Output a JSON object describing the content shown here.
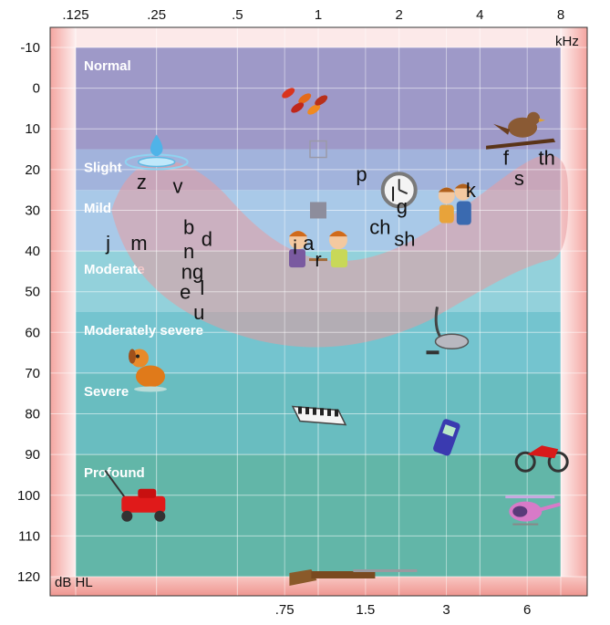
{
  "chart_data": {
    "type": "audiogram",
    "x_unit": "kHz",
    "y_unit": "dB HL",
    "x_ticks_top": [
      ".125",
      ".25",
      ".5",
      "1",
      "2",
      "4",
      "8"
    ],
    "x_ticks_bottom": [
      ".75",
      "1.5",
      "3",
      "6"
    ],
    "y_ticks": [
      "-10",
      "0",
      "10",
      "20",
      "30",
      "40",
      "50",
      "60",
      "70",
      "80",
      "90",
      "100",
      "110",
      "120"
    ],
    "ylim": [
      -10,
      120
    ],
    "bands": [
      {
        "label": "Normal",
        "from": -10,
        "to": 15,
        "color": "#9e99c8"
      },
      {
        "label": "Slight",
        "from": 15,
        "to": 25,
        "color": "#a2b3dc"
      },
      {
        "label": "Mild",
        "from": 25,
        "to": 40,
        "color": "#a9c9e8"
      },
      {
        "label": "Moderate",
        "from": 40,
        "to": 55,
        "color": "#93d1db"
      },
      {
        "label": "Moderately severe",
        "from": 55,
        "to": 70,
        "color": "#74c4cf"
      },
      {
        "label": "Severe",
        "from": 70,
        "to": 90,
        "color": "#69bdc0"
      },
      {
        "label": "Profound",
        "from": 90,
        "to": 120,
        "color": "#62b6a8"
      }
    ],
    "speech_sounds": [
      {
        "text": "z",
        "freq": 0.22,
        "db": 23
      },
      {
        "text": "v",
        "freq": 0.3,
        "db": 24
      },
      {
        "text": "p",
        "freq": 1.45,
        "db": 21
      },
      {
        "text": "f",
        "freq": 5.0,
        "db": 17
      },
      {
        "text": "th",
        "freq": 7.1,
        "db": 17
      },
      {
        "text": "s",
        "freq": 5.6,
        "db": 22
      },
      {
        "text": "l",
        "freq": 1.9,
        "db": 26
      },
      {
        "text": "g",
        "freq": 2.05,
        "db": 29
      },
      {
        "text": "k",
        "freq": 3.7,
        "db": 25
      },
      {
        "text": "ch",
        "freq": 1.7,
        "db": 34
      },
      {
        "text": "sh",
        "freq": 2.1,
        "db": 37
      },
      {
        "text": "j",
        "freq": 0.165,
        "db": 38
      },
      {
        "text": "m",
        "freq": 0.215,
        "db": 38
      },
      {
        "text": "b",
        "freq": 0.33,
        "db": 34
      },
      {
        "text": "d",
        "freq": 0.385,
        "db": 37
      },
      {
        "text": "n",
        "freq": 0.33,
        "db": 40
      },
      {
        "text": "i",
        "freq": 0.82,
        "db": 39
      },
      {
        "text": "a",
        "freq": 0.92,
        "db": 38
      },
      {
        "text": "r",
        "freq": 1.0,
        "db": 42
      },
      {
        "text": "ng",
        "freq": 0.34,
        "db": 45
      },
      {
        "text": "e",
        "freq": 0.32,
        "db": 50
      },
      {
        "text": "l",
        "freq": 0.37,
        "db": 49
      },
      {
        "text": "u",
        "freq": 0.36,
        "db": 55
      }
    ],
    "markers": [
      {
        "shape": "open-square",
        "freq": 1.0,
        "db": 15
      },
      {
        "shape": "filled-square",
        "freq": 1.0,
        "db": 30
      }
    ],
    "icons": [
      {
        "name": "leaves-icon",
        "freq": 0.85,
        "db": 3
      },
      {
        "name": "water-drop-icon",
        "freq": 0.25,
        "db": 15
      },
      {
        "name": "bird-icon",
        "freq": 5.5,
        "db": 11
      },
      {
        "name": "clock-icon",
        "freq": 2.0,
        "db": 25
      },
      {
        "name": "children-icon",
        "freq": 3.2,
        "db": 30
      },
      {
        "name": "people-talking-icon",
        "freq": 1.0,
        "db": 40
      },
      {
        "name": "vacuum-icon",
        "freq": 3.0,
        "db": 60
      },
      {
        "name": "dog-icon",
        "freq": 0.23,
        "db": 69
      },
      {
        "name": "piano-icon",
        "freq": 1.0,
        "db": 80
      },
      {
        "name": "phone-icon",
        "freq": 3.0,
        "db": 86
      },
      {
        "name": "motorcycle-icon",
        "freq": 6.8,
        "db": 90
      },
      {
        "name": "lawnmower-icon",
        "freq": 0.22,
        "db": 102
      },
      {
        "name": "helicopter-icon",
        "freq": 6.1,
        "db": 104
      },
      {
        "name": "rifle-icon",
        "freq": 1.35,
        "db": 120
      }
    ]
  }
}
